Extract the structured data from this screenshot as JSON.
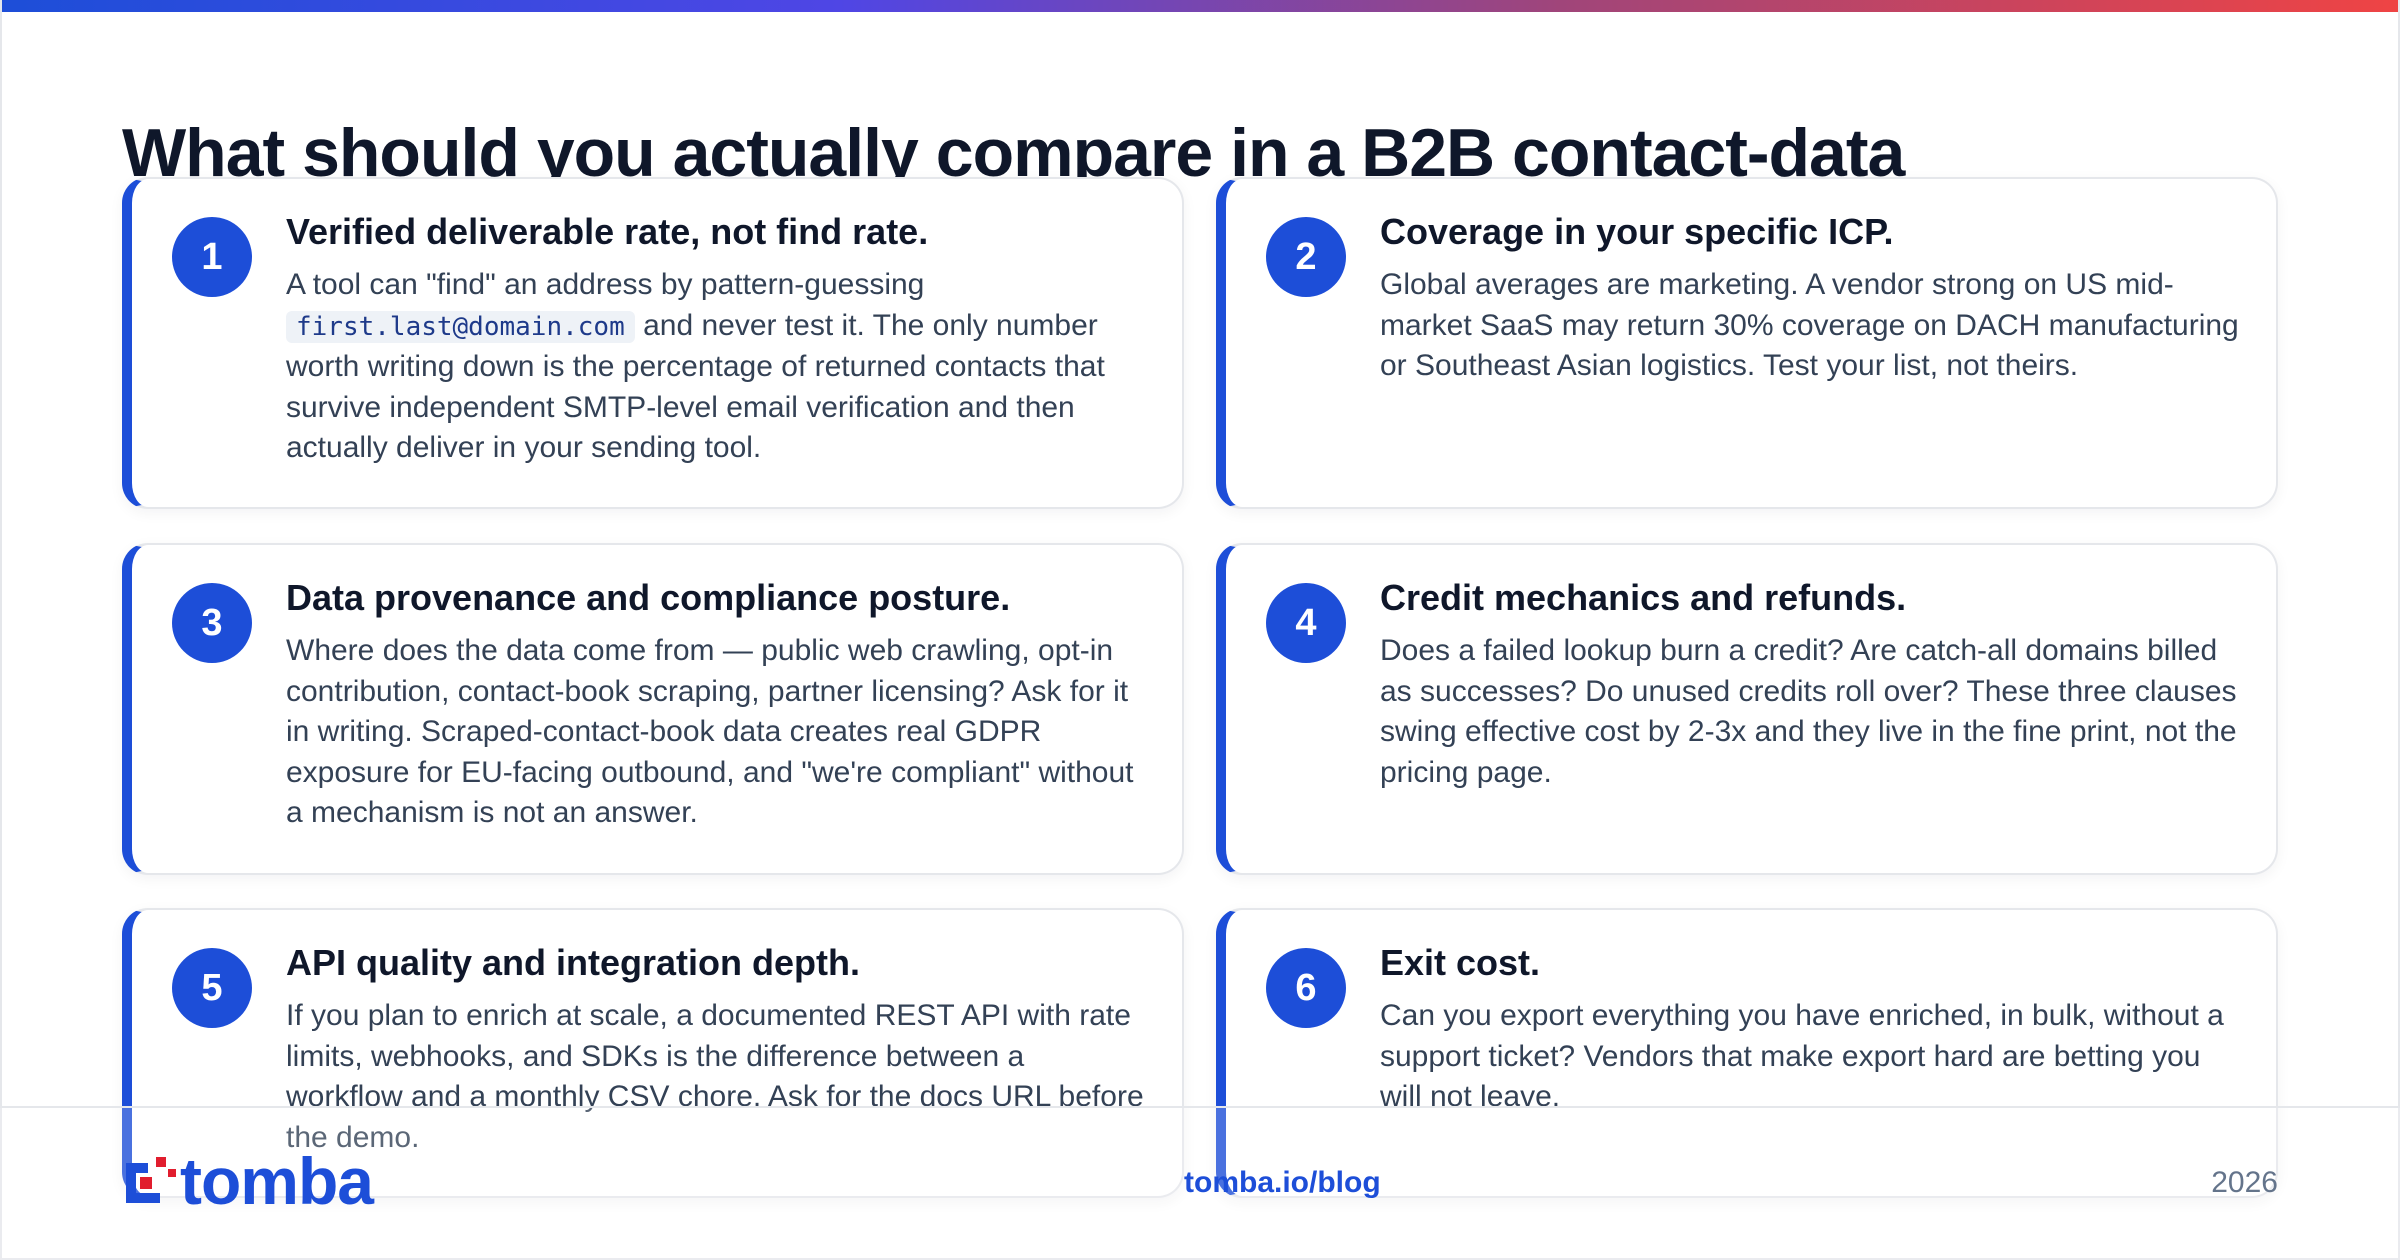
{
  "page": {
    "title": "What should you actually compare in a B2B contact-data"
  },
  "cards": [
    {
      "number": "1",
      "title": "Verified deliverable rate, not find rate.",
      "body_before_code": "A tool can \"find\" an address by pattern-guessing ",
      "code": "first.last@domain.com",
      "body_after_code": " and never test it. The only number worth writing down is the percentage of returned contacts that survive independent SMTP-level email verification and then actually deliver in your sending tool."
    },
    {
      "number": "2",
      "title": "Coverage in your specific ICP.",
      "body": "Global averages are marketing. A vendor strong on US mid-market SaaS may return 30% coverage on DACH manufacturing or Southeast Asian logistics. Test your list, not theirs."
    },
    {
      "number": "3",
      "title": "Data provenance and compliance posture.",
      "body": "Where does the data come from — public web crawling, opt-in contribution, contact-book scraping, partner licensing? Ask for it in writing. Scraped-contact-book data creates real GDPR exposure for EU-facing outbound, and \"we're compliant\" without a mechanism is not an answer."
    },
    {
      "number": "4",
      "title": "Credit mechanics and refunds.",
      "body": "Does a failed lookup burn a credit? Are catch-all domains billed as successes? Do unused credits roll over? These three clauses swing effective cost by 2-3x and they live in the fine print, not the pricing page."
    },
    {
      "number": "5",
      "title": "API quality and integration depth.",
      "body": "If you plan to enrich at scale, a documented REST API with rate limits, webhooks, and SDKs is the difference between a workflow and a monthly CSV chore. Ask for the docs URL before the demo."
    },
    {
      "number": "6",
      "title": "Exit cost.",
      "body": "Can you export everything you have enriched, in bulk, without a support ticket? Vendors that make export hard are betting you will not leave."
    }
  ],
  "footer": {
    "logo_text": "tomba",
    "link": "tomba.io/blog",
    "year": "2026"
  },
  "colors": {
    "accent": "#1d4ed8",
    "heading": "#0f172a",
    "body_text": "#334155",
    "muted": "#64748b",
    "logo_red": "#e11d2e"
  },
  "icons": {
    "logo": "tomba-logo-icon"
  }
}
